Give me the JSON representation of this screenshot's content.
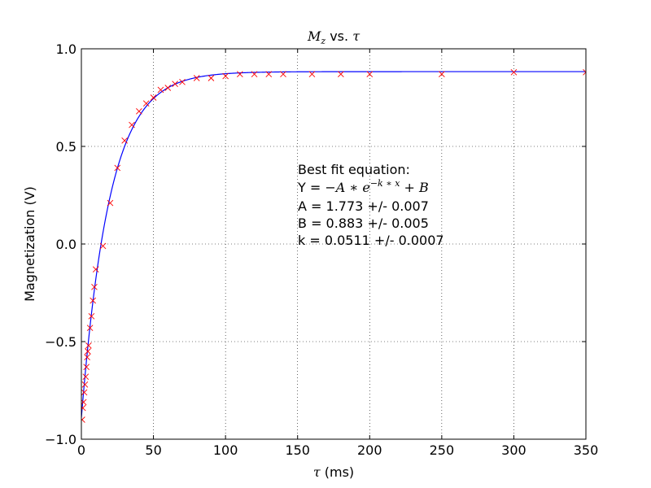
{
  "chart_data": {
    "type": "scatter",
    "title_parts": [
      "M",
      "z",
      " vs. ",
      "τ"
    ],
    "xlabel_parts": [
      "τ",
      " (ms)"
    ],
    "ylabel": "Magnetization (V)",
    "xlim": [
      0,
      350
    ],
    "ylim": [
      -1.0,
      1.0
    ],
    "xticks": [
      0,
      50,
      100,
      150,
      200,
      250,
      300,
      350
    ],
    "xtick_labels": [
      "0",
      "50",
      "100",
      "150",
      "200",
      "250",
      "300",
      "350"
    ],
    "yticks": [
      -1.0,
      -0.5,
      0.0,
      0.5,
      1.0
    ],
    "ytick_labels": [
      "−1.0",
      "−0.5",
      "0.0",
      "0.5",
      "1.0"
    ],
    "grid": true,
    "series": [
      {
        "kind": "markers",
        "marker": "x",
        "color": "#ff0000",
        "x": [
          0.5,
          1,
          1.5,
          2,
          2.5,
          3,
          3.5,
          4,
          4.5,
          5,
          6,
          7,
          8,
          9,
          10,
          15,
          20,
          25,
          30,
          35,
          40,
          45,
          50,
          55,
          60,
          65,
          70,
          80,
          90,
          100,
          110,
          120,
          130,
          140,
          160,
          180,
          200,
          250,
          300,
          350
        ],
        "y": [
          -0.9,
          -0.84,
          -0.81,
          -0.76,
          -0.72,
          -0.68,
          -0.63,
          -0.58,
          -0.55,
          -0.52,
          -0.43,
          -0.37,
          -0.29,
          -0.22,
          -0.13,
          -0.01,
          0.21,
          0.39,
          0.53,
          0.61,
          0.68,
          0.72,
          0.75,
          0.79,
          0.8,
          0.82,
          0.83,
          0.85,
          0.85,
          0.86,
          0.87,
          0.87,
          0.87,
          0.87,
          0.87,
          0.87,
          0.87,
          0.87,
          0.88,
          0.88
        ]
      },
      {
        "kind": "fit-line",
        "color": "#0000ff",
        "model": "-A*exp(-k*x)+B",
        "A": 1.773,
        "B": 0.883,
        "k": 0.0511
      }
    ],
    "annotation": {
      "line1": "Best fit equation:",
      "line2_prefix": "Y = ",
      "line2_math": "−A ∗ e",
      "line2_sup": "−k ∗ x",
      "line2_tail": " + B",
      "line3": "A = 1.773 +/- 0.007",
      "line4": "B = 0.883 +/- 0.005",
      "line5": "k = 0.0511 +/- 0.0007"
    }
  }
}
